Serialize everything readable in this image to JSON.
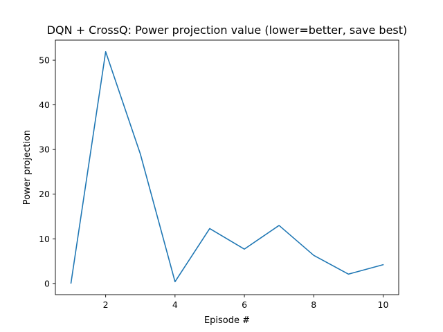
{
  "chart_data": {
    "type": "line",
    "title": "DQN + CrossQ: Power projection value (lower=better, save best)",
    "xlabel": "Episode #",
    "ylabel": "Power projection",
    "x": [
      1,
      2,
      3,
      4,
      5,
      6,
      7,
      8,
      9,
      10
    ],
    "series": [
      {
        "values": [
          0.1,
          51.9,
          29.0,
          0.4,
          12.3,
          7.7,
          13.0,
          6.3,
          2.1,
          4.2
        ],
        "color": "#1f77b4"
      }
    ],
    "xlim": [
      0.55,
      10.45
    ],
    "ylim": [
      -2.5,
      54.5
    ],
    "xticks": [
      2,
      4,
      6,
      8,
      10
    ],
    "yticks": [
      0,
      10,
      20,
      30,
      40,
      50
    ],
    "grid": false,
    "legend": "none"
  }
}
